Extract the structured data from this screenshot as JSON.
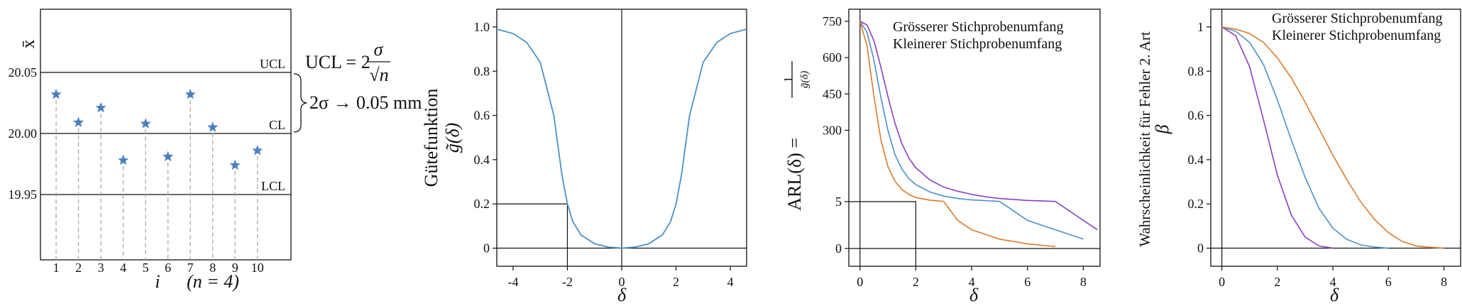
{
  "colors": {
    "blue": "#4a90c8",
    "purple": "#8a3fbf",
    "orange": "#e07a2a",
    "star": "#4a7fc0"
  },
  "panels": [
    {
      "id": "control-chart",
      "ylabel": "x̄",
      "xlabel": "i",
      "xnote": "(n = 4)",
      "ytick_labels": [
        "20.05",
        "20.00",
        "19.95"
      ],
      "xtick_labels": [
        "1",
        "2",
        "3",
        "4",
        "5",
        "6",
        "7",
        "8",
        "9",
        "10"
      ],
      "limit_labels": {
        "ucl": "UCL",
        "cl": "CL",
        "lcl": "LCL"
      },
      "formula_prefix": "UCL = 2",
      "formula_num": "σ",
      "formula_den": "√n",
      "brace_text": "2σ → 0.05 mm"
    },
    {
      "id": "power",
      "ylabel_line1": "Gütefunktion",
      "ylabel_line2": "g̃(δ)",
      "xlabel": "δ",
      "ytick_labels": [
        "1.0",
        "0.8",
        "0.6",
        "0.4",
        "0.2",
        "0"
      ],
      "xtick_labels": [
        "-4",
        "-2",
        "0",
        "2",
        "4"
      ]
    },
    {
      "id": "arl",
      "ylabel_prefix": "ARL(δ) =",
      "ylabel_num": "1",
      "ylabel_den": "g̃(δ)",
      "xlabel": "δ",
      "ytick_labels": [
        "750",
        "600",
        "450",
        "300",
        "5",
        "0"
      ],
      "xtick_labels": [
        "0",
        "2",
        "4",
        "6",
        "8"
      ],
      "legend": [
        "Grösserer Stichprobenumfang",
        "Kleinerer Stichprobenumfang"
      ]
    },
    {
      "id": "beta",
      "ylabel_line1": "Wahrscheinlichkeit für Fehler 2. Art",
      "ylabel_line2": "β",
      "xlabel": "δ",
      "ytick_labels": [
        "1",
        "0.8",
        "0.6",
        "0.4",
        "0.2",
        "0"
      ],
      "xtick_labels": [
        "0",
        "2",
        "4",
        "6",
        "8"
      ],
      "legend": [
        "Grösserer Stichprobenumfang",
        "Kleinerer Stichprobenumfang"
      ]
    }
  ],
  "chart_data": [
    {
      "type": "scatter",
      "title": "",
      "xlabel": "i",
      "ylabel": "x̄",
      "x": [
        1,
        2,
        3,
        4,
        5,
        6,
        7,
        8,
        9,
        10
      ],
      "y": [
        20.032,
        20.009,
        20.021,
        19.978,
        20.008,
        19.981,
        20.032,
        20.005,
        19.974,
        19.986
      ],
      "ylim": [
        19.9,
        20.1
      ],
      "xlim": [
        0.3,
        11.5
      ],
      "limits": {
        "UCL": 20.05,
        "CL": 20.0,
        "LCL": 19.95
      }
    },
    {
      "type": "line",
      "title": "",
      "xlabel": "δ",
      "ylabel": "Gütefunktion g̃(δ)",
      "xlim": [
        -4.6,
        4.6
      ],
      "ylim": [
        -0.04,
        1.08
      ],
      "series": [
        {
          "name": "",
          "x": [
            -4.6,
            -4,
            -3.5,
            -3,
            -2.5,
            -2.2,
            -2,
            -1.8,
            -1.5,
            -1,
            -0.5,
            0,
            0.5,
            1,
            1.5,
            1.8,
            2,
            2.2,
            2.5,
            3,
            3.5,
            4,
            4.6
          ],
          "y": [
            0.99,
            0.97,
            0.93,
            0.84,
            0.6,
            0.33,
            0.2,
            0.12,
            0.06,
            0.02,
            0.005,
            0.0,
            0.005,
            0.02,
            0.06,
            0.12,
            0.2,
            0.33,
            0.6,
            0.84,
            0.93,
            0.97,
            0.99
          ]
        }
      ],
      "annotation": {
        "x": -2,
        "y": 0.2
      }
    },
    {
      "type": "line",
      "title": "",
      "xlabel": "δ",
      "ylabel": "ARL(δ) = 1/g̃(δ)",
      "xlim": [
        -0.4,
        8.6
      ],
      "ylim": [
        -30,
        800
      ],
      "series": [
        {
          "name": "Grösserer Stichprobenumfang",
          "x": [
            0,
            0.25,
            0.5,
            0.75,
            1,
            1.25,
            1.5,
            1.75,
            2,
            2.5,
            3,
            3.5,
            4,
            4.5,
            5,
            6,
            7,
            8,
            8.5
          ],
          "y": [
            750,
            735,
            670,
            560,
            440,
            330,
            245,
            185,
            145,
            95,
            65,
            48,
            35,
            25,
            18,
            10,
            6,
            3,
            2
          ]
        },
        {
          "name": "",
          "x": [
            0,
            0.25,
            0.5,
            0.75,
            1,
            1.25,
            1.5,
            1.75,
            2,
            2.5,
            3,
            3.5,
            4,
            5,
            6,
            7,
            8
          ],
          "y": [
            750,
            705,
            590,
            435,
            300,
            200,
            140,
            100,
            75,
            45,
            28,
            18,
            12,
            6,
            3,
            2,
            1
          ]
        },
        {
          "name": "Kleinerer Stichprobenumfang",
          "x": [
            0,
            0.25,
            0.5,
            0.75,
            1,
            1.25,
            1.5,
            1.75,
            2,
            2.5,
            3,
            3.5,
            4,
            5,
            6,
            7
          ],
          "y": [
            750,
            650,
            440,
            260,
            150,
            90,
            55,
            35,
            22,
            11,
            6,
            3,
            2,
            1,
            0.5,
            0.2
          ]
        }
      ],
      "annotation": {
        "x": 2,
        "y": 5
      }
    },
    {
      "type": "line",
      "title": "",
      "xlabel": "δ",
      "ylabel": "Wahrscheinlichkeit für Fehler 2. Art β",
      "xlim": [
        -0.4,
        8.6
      ],
      "ylim": [
        -0.04,
        1.08
      ],
      "series": [
        {
          "name": "Grösserer Stichprobenumfang",
          "x": [
            0,
            0.5,
            1,
            1.5,
            2,
            2.5,
            3,
            3.5,
            4
          ],
          "y": [
            1.0,
            0.96,
            0.82,
            0.58,
            0.33,
            0.15,
            0.05,
            0.01,
            0.0
          ]
        },
        {
          "name": "",
          "x": [
            0,
            0.5,
            1,
            1.5,
            2,
            2.5,
            3,
            3.5,
            4,
            4.5,
            5,
            5.5,
            6
          ],
          "y": [
            1.0,
            0.98,
            0.93,
            0.83,
            0.67,
            0.49,
            0.32,
            0.18,
            0.09,
            0.04,
            0.015,
            0.005,
            0.0
          ]
        },
        {
          "name": "Kleinerer Stichprobenumfang",
          "x": [
            0,
            0.5,
            1,
            1.5,
            2,
            2.5,
            3,
            3.5,
            4,
            4.5,
            5,
            5.5,
            6,
            6.5,
            7,
            7.5,
            8
          ],
          "y": [
            1.0,
            0.99,
            0.97,
            0.93,
            0.86,
            0.77,
            0.66,
            0.54,
            0.42,
            0.31,
            0.21,
            0.13,
            0.07,
            0.03,
            0.01,
            0.004,
            0.0
          ]
        }
      ]
    }
  ]
}
